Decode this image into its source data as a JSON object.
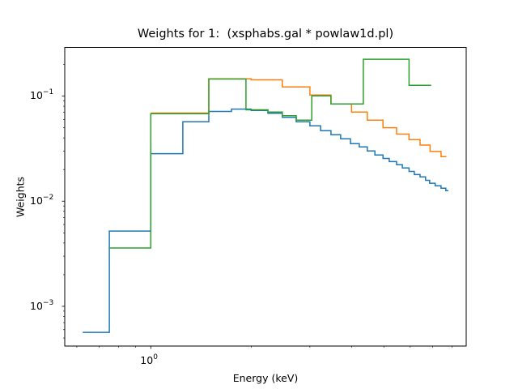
{
  "chart_data": {
    "type": "line",
    "step": "post",
    "title": "Weights for 1:  (xsphabs.gal * powlaw1d.pl)",
    "xlabel": "Energy (keV)",
    "ylabel": "Weights",
    "xscale": "log",
    "yscale": "log",
    "xlim": [
      0.552,
      8.83
    ],
    "ylim": [
      0.000419,
      0.29
    ],
    "grid": false,
    "x_ticks": [
      {
        "base": "10",
        "exp": "0",
        "value": 1
      }
    ],
    "y_ticks": [
      {
        "base": "10",
        "exp": "−1",
        "value": 0.1
      },
      {
        "base": "10",
        "exp": "−2",
        "value": 0.01
      },
      {
        "base": "10",
        "exp": "−3",
        "value": 0.001
      }
    ],
    "series": [
      {
        "color": "#1f77b4",
        "edges": [
          0.625,
          0.751,
          1.0,
          1.248,
          1.493,
          1.746,
          2.0,
          2.245,
          2.48,
          2.73,
          3.0,
          3.23,
          3.47,
          3.71,
          3.97,
          4.22,
          4.46,
          4.7,
          4.97,
          5.19,
          5.46,
          5.68,
          5.95,
          6.17,
          6.42,
          6.67,
          6.86,
          7.13,
          7.42,
          7.67,
          7.81
        ],
        "values": [
          0.000566,
          0.0052,
          0.0283,
          0.0569,
          0.0714,
          0.0752,
          0.073,
          0.0685,
          0.0627,
          0.0569,
          0.0521,
          0.0468,
          0.0428,
          0.0392,
          0.0352,
          0.0328,
          0.03,
          0.0275,
          0.0255,
          0.0238,
          0.0222,
          0.0207,
          0.0192,
          0.0179,
          0.017,
          0.0158,
          0.0148,
          0.014,
          0.0133,
          0.0126
        ]
      },
      {
        "color": "#ff7f0e",
        "edges": [
          1.0,
          1.493,
          2.0,
          2.48,
          3.0,
          3.47,
          4.0,
          4.46,
          4.97,
          5.46,
          5.95,
          6.42,
          6.88,
          7.42,
          7.7
        ],
        "values": [
          0.0689,
          0.146,
          0.1427,
          0.122,
          0.1023,
          0.0842,
          0.0705,
          0.0589,
          0.05,
          0.0434,
          0.0385,
          0.0342,
          0.0297,
          0.0265
        ]
      },
      {
        "color": "#2ca02c",
        "edges": [
          0.751,
          1.0,
          1.493,
          1.93,
          2.245,
          2.48,
          2.73,
          3.04,
          3.47,
          4.34,
          5.95,
          6.93
        ],
        "values": [
          0.00359,
          0.068,
          0.1452,
          0.0739,
          0.0705,
          0.065,
          0.0589,
          0.1005,
          0.0842,
          0.224,
          0.1266
        ]
      }
    ]
  }
}
